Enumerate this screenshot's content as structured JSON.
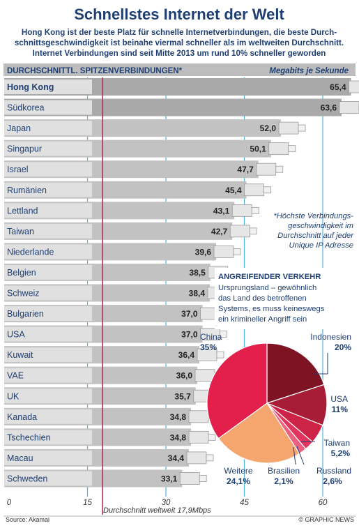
{
  "header": {
    "title": "Schnellstes Internet der Welt",
    "subtitle_lines": [
      "Hong Kong ist der beste Platz für schnelle Internetverbindungen, die beste Durch-",
      "schnittsgeschwindigkeit ist beinahe viermal schneller als im weltweiten Durchschnitt.",
      "Internet Verbindungen sind seit Mitte 2013 um rund 10% schneller geworden"
    ]
  },
  "chart_data": [
    {
      "type": "bar",
      "orientation": "horizontal",
      "title": "DURCHSCHNITTL. SPITZENVERBINDUNGEN*",
      "unit_label": "Megabits je Sekunde",
      "categories": [
        "Hong Kong",
        "Südkorea",
        "Japan",
        "Singapur",
        "Israel",
        "Rumänien",
        "Lettland",
        "Taiwan",
        "Niederlande",
        "Belgien",
        "Schweiz",
        "Bulgarien",
        "USA",
        "Kuwait",
        "VAE",
        "UK",
        "Kanada",
        "Tschechien",
        "Macau",
        "Schweden"
      ],
      "values": [
        65.4,
        63.6,
        52.0,
        50.1,
        47.7,
        45.4,
        43.1,
        42.7,
        39.6,
        38.5,
        38.4,
        37.0,
        37.0,
        36.4,
        36.0,
        35.7,
        34.8,
        34.8,
        34.4,
        33.1
      ],
      "value_labels": [
        "65,4",
        "63,6",
        "52,0",
        "50,1",
        "47,7",
        "45,4",
        "43,1",
        "42,7",
        "39,6",
        "38,5",
        "38,4",
        "37,0",
        "37,0",
        "36,4",
        "36,0",
        "35,7",
        "34,8",
        "34,8",
        "34,4",
        "33,1"
      ],
      "xlim": [
        0,
        67
      ],
      "xticks": [
        0,
        15,
        30,
        45,
        60
      ],
      "grid": true,
      "reference_line": {
        "value": 17.9,
        "label": "Durchschnitt weltweit 17,9Mbps"
      }
    },
    {
      "type": "pie",
      "title": "ANGREIFENDER VERKEHR",
      "subtitle_lines": [
        "Ursprungsland – gewöhnlich",
        "das Land des betroffenen",
        "Systems, es muss keineswegs",
        "ein krimineller Angriff sein"
      ],
      "slices": [
        {
          "label": "Indonesien",
          "value": 20.0,
          "value_label": "20%"
        },
        {
          "label": "USA",
          "value": 11.0,
          "value_label": "11%"
        },
        {
          "label": "Taiwan",
          "value": 5.2,
          "value_label": "5,2%"
        },
        {
          "label": "Russland",
          "value": 2.6,
          "value_label": "2,6%"
        },
        {
          "label": "Brasilien",
          "value": 2.1,
          "value_label": "2,1%"
        },
        {
          "label": "Weitere",
          "value": 24.1,
          "value_label": "24,1%"
        },
        {
          "label": "China",
          "value": 35.0,
          "value_label": "35%"
        }
      ]
    }
  ],
  "footnote_lines": [
    "*Höchste Verbindungs-",
    "geschwindigkeit im",
    "Durchschnitt auf jeder",
    "Unique IP Adresse"
  ],
  "footer": {
    "source": "Source: Akamai",
    "credit": "© GRAPHIC NEWS"
  },
  "colors": {
    "bar": "#c2c2c2",
    "bar_highlight": "#a9a9a9",
    "label_box": "#e0e0e0",
    "header_band": "#bdbdbd",
    "title_blue": "#1f3f73",
    "reference_line": "#c8234a",
    "grid": "#54b4dc",
    "pie": [
      "#7e1324",
      "#a71d37",
      "#cc2346",
      "#e1355d",
      "#ee607f",
      "#f5a66f",
      "#e31f4c"
    ]
  }
}
